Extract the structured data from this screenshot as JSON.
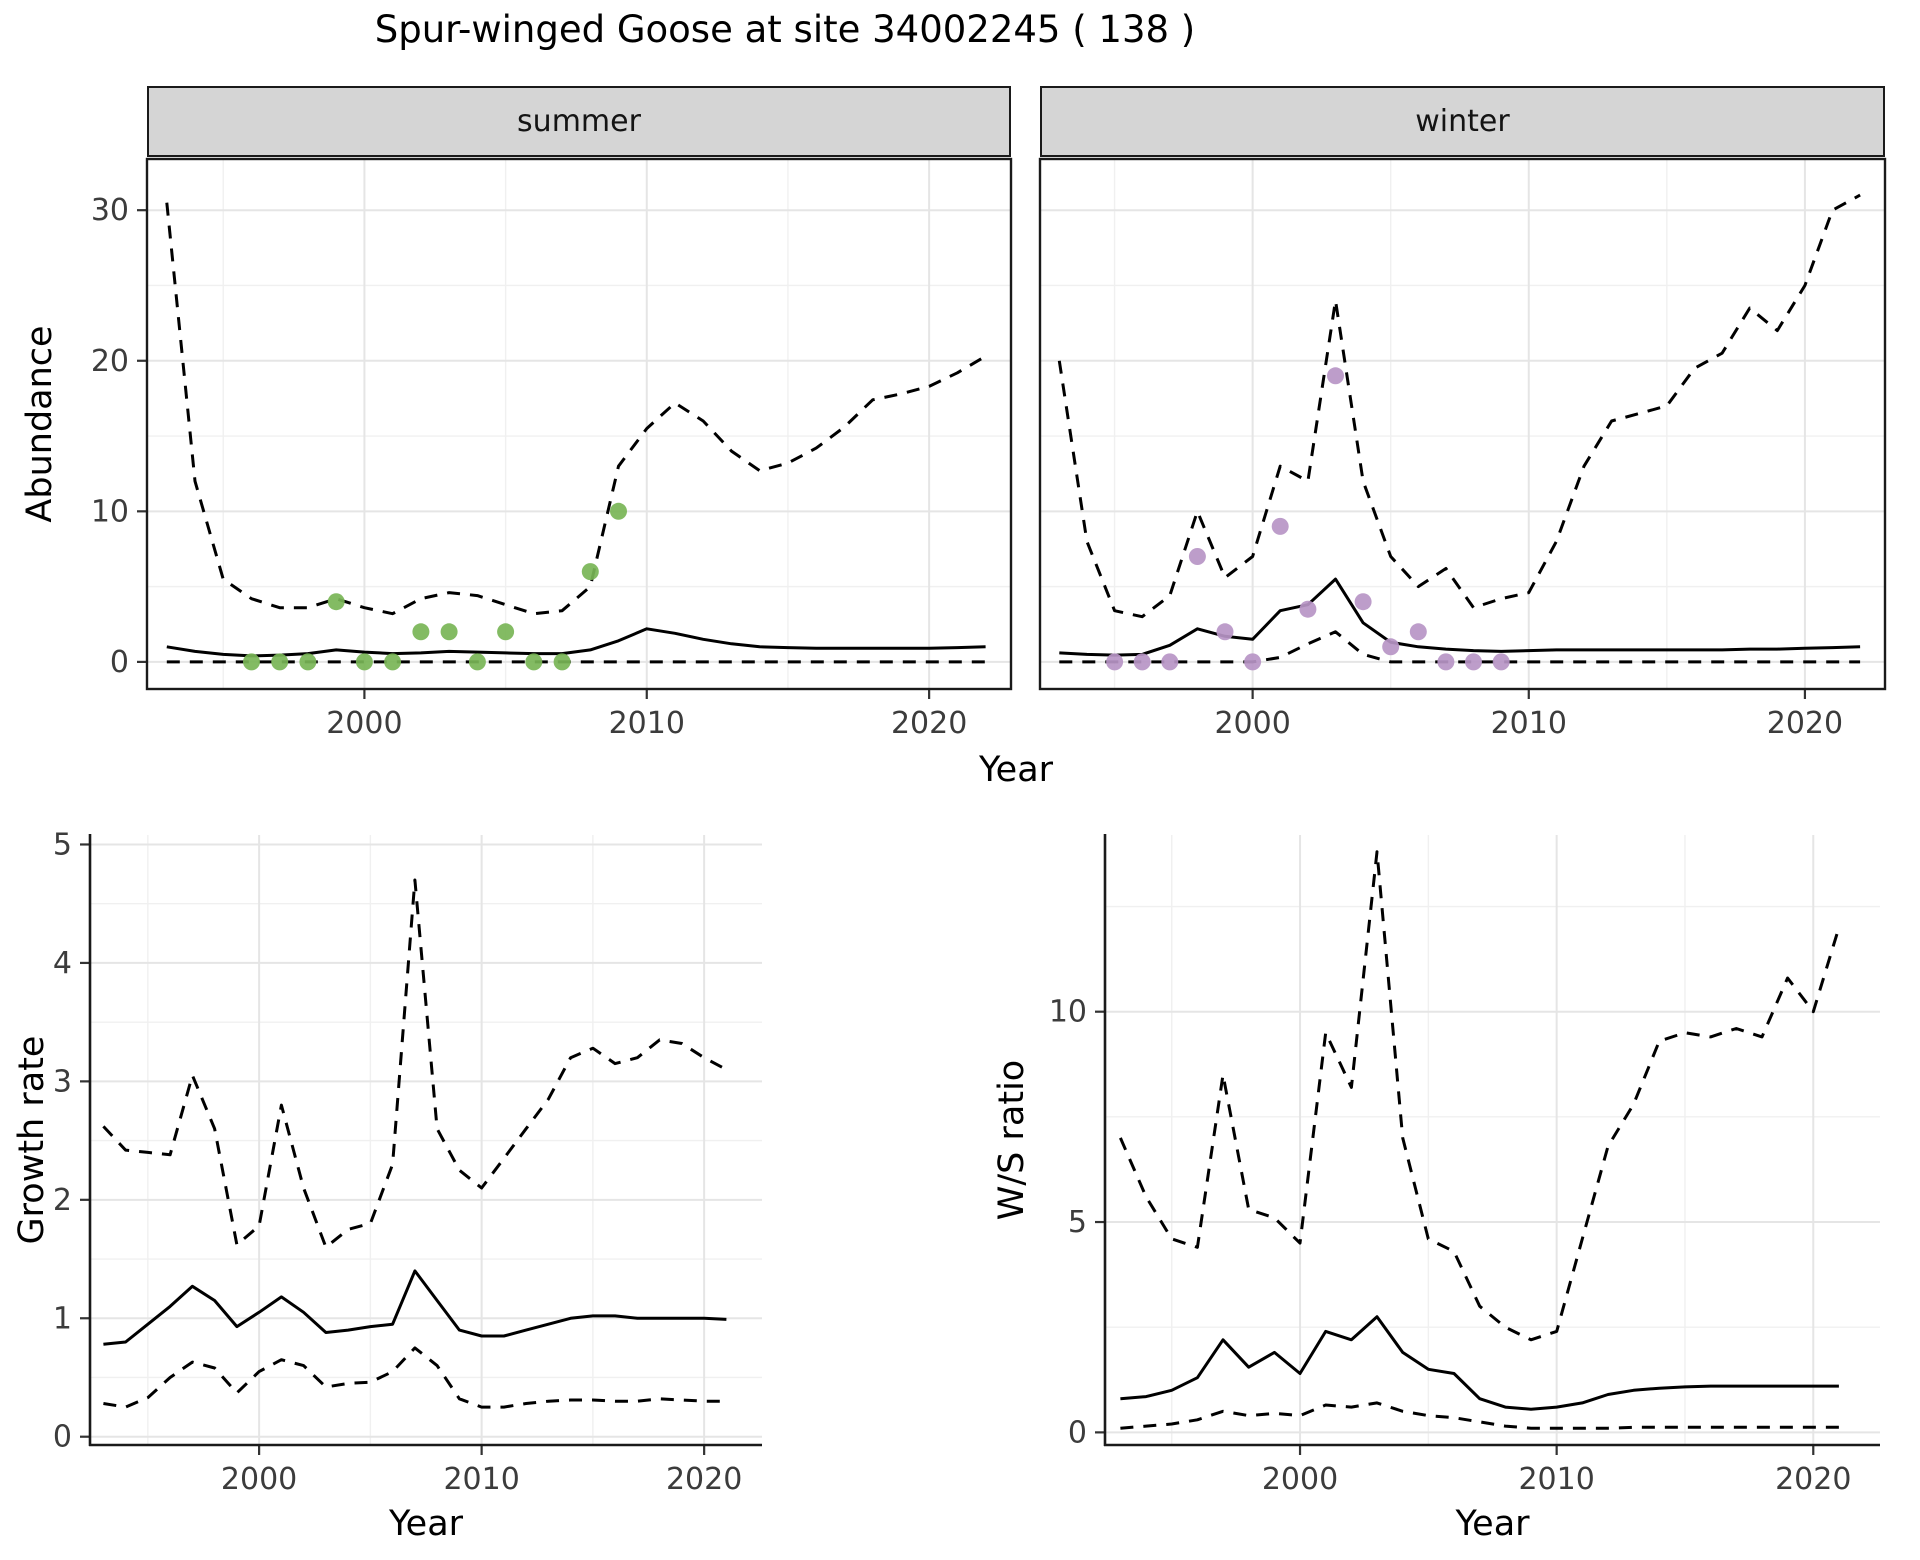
{
  "title": "Spur-winged Goose at site 34002245 ( 138 )",
  "facets": [
    {
      "label": "summer"
    },
    {
      "label": "winter"
    }
  ],
  "labels": {
    "abundance_y": "Abundance",
    "abundance_x": "Year",
    "growth_y": "Growth rate",
    "growth_x": "Year",
    "ws_y": "W/S ratio",
    "ws_x": "Year"
  },
  "colors": {
    "line": "#000000",
    "grid_major": "#e5e5e5",
    "grid_minor": "#f0f0f0",
    "strip_bg": "#d5d5d5",
    "summer_points": "#78b556",
    "winter_points": "#b795c6"
  },
  "chart_data": [
    {
      "id": "abundance-summer",
      "type": "line",
      "facet": "summer",
      "title": "Spur-winged Goose at site 34002245 ( 138 )",
      "xlabel": "Year",
      "ylabel": "Abundance",
      "x": [
        1993,
        1994,
        1995,
        1996,
        1997,
        1998,
        1999,
        2000,
        2001,
        2002,
        2003,
        2004,
        2005,
        2006,
        2007,
        2008,
        2009,
        2010,
        2011,
        2012,
        2013,
        2014,
        2015,
        2016,
        2017,
        2018,
        2019,
        2020,
        2021,
        2022
      ],
      "series": [
        {
          "name": "upper_95ci",
          "style": "dashed",
          "values": [
            30.5,
            12.0,
            5.5,
            4.2,
            3.6,
            3.6,
            4.2,
            3.6,
            3.2,
            4.2,
            4.6,
            4.4,
            3.8,
            3.2,
            3.4,
            5.0,
            13.0,
            15.5,
            17.2,
            16.0,
            14.0,
            12.7,
            13.2,
            14.2,
            15.6,
            17.4,
            17.8,
            18.3,
            19.2,
            20.3
          ]
        },
        {
          "name": "median",
          "style": "solid",
          "values": [
            1.0,
            0.7,
            0.5,
            0.4,
            0.45,
            0.55,
            0.8,
            0.65,
            0.55,
            0.6,
            0.7,
            0.65,
            0.6,
            0.55,
            0.55,
            0.8,
            1.4,
            2.2,
            1.9,
            1.5,
            1.2,
            1.0,
            0.95,
            0.9,
            0.9,
            0.9,
            0.9,
            0.9,
            0.95,
            1.0
          ]
        },
        {
          "name": "lower_95ci",
          "style": "dashed",
          "values": [
            0,
            0,
            0,
            0,
            0,
            0,
            0,
            0,
            0,
            0,
            0,
            0,
            0,
            0,
            0,
            0,
            0,
            0,
            0,
            0,
            0,
            0,
            0,
            0,
            0,
            0,
            0,
            0,
            0,
            0
          ]
        }
      ],
      "points": {
        "name": "observed counts (summer)",
        "color": "#78b556",
        "x": [
          1996,
          1997,
          1998,
          1999,
          2000,
          2001,
          2002,
          2003,
          2004,
          2005,
          2006,
          2007,
          2008,
          2009
        ],
        "y": [
          0,
          0,
          0,
          4,
          0,
          0,
          2,
          2,
          0,
          2,
          0,
          0,
          6,
          10
        ]
      },
      "xlim": [
        1992.3,
        2022.9
      ],
      "ylim": [
        -1.8,
        33.4
      ],
      "xticks": [
        2000,
        2010,
        2020
      ],
      "yticks": [
        0,
        10,
        20,
        30
      ],
      "xminor": [
        1995,
        2005,
        2015
      ],
      "yminor": [
        5,
        15,
        25
      ],
      "grid": true,
      "legend": "none"
    },
    {
      "id": "abundance-winter",
      "type": "line",
      "facet": "winter",
      "title": "Spur-winged Goose at site 34002245 ( 138 )",
      "xlabel": "Year",
      "ylabel": "Abundance",
      "x": [
        1993,
        1994,
        1995,
        1996,
        1997,
        1998,
        1999,
        2000,
        2001,
        2002,
        2003,
        2004,
        2005,
        2006,
        2007,
        2008,
        2009,
        2010,
        2011,
        2012,
        2013,
        2014,
        2015,
        2016,
        2017,
        2018,
        2019,
        2020,
        2021,
        2022
      ],
      "series": [
        {
          "name": "upper_95ci",
          "style": "dashed",
          "values": [
            20.0,
            8.0,
            3.4,
            3.0,
            4.4,
            10.0,
            5.6,
            7.0,
            13.0,
            12.0,
            24.0,
            12.0,
            7.0,
            5.0,
            6.2,
            3.6,
            4.2,
            4.6,
            8.0,
            13.0,
            16.0,
            16.5,
            17.0,
            19.5,
            20.5,
            23.5,
            22.0,
            25.0,
            30.0,
            31.0
          ]
        },
        {
          "name": "median",
          "style": "solid",
          "values": [
            0.6,
            0.5,
            0.45,
            0.5,
            1.1,
            2.2,
            1.7,
            1.5,
            3.4,
            3.8,
            5.5,
            2.6,
            1.3,
            1.0,
            0.85,
            0.75,
            0.7,
            0.75,
            0.8,
            0.8,
            0.8,
            0.8,
            0.8,
            0.8,
            0.8,
            0.85,
            0.85,
            0.9,
            0.95,
            1.0
          ]
        },
        {
          "name": "lower_95ci",
          "style": "dashed",
          "values": [
            0,
            0,
            0,
            0,
            0,
            0,
            0,
            0,
            0.3,
            1.2,
            2.0,
            0.5,
            0,
            0,
            0,
            0,
            0,
            0,
            0,
            0,
            0,
            0,
            0,
            0,
            0,
            0,
            0,
            0,
            0,
            0
          ]
        }
      ],
      "points": {
        "name": "observed counts (winter)",
        "color": "#b795c6",
        "x": [
          1995,
          1996,
          1997,
          1998,
          1999,
          2000,
          2001,
          2002,
          2003,
          2004,
          2005,
          2006,
          2007,
          2008,
          2009
        ],
        "y": [
          0,
          0,
          0,
          7,
          2,
          0,
          9,
          3.5,
          19,
          4,
          1,
          2,
          0,
          0,
          0
        ]
      },
      "xlim": [
        1992.3,
        2022.9
      ],
      "ylim": [
        -1.8,
        33.4
      ],
      "xticks": [
        2000,
        2010,
        2020
      ],
      "yticks": [
        0,
        10,
        20,
        30
      ],
      "xminor": [
        1995,
        2005,
        2015
      ],
      "yminor": [
        5,
        15,
        25
      ],
      "grid": true,
      "legend": "none"
    },
    {
      "id": "growth-rate",
      "type": "line",
      "title": "",
      "xlabel": "Year",
      "ylabel": "Growth rate",
      "x": [
        1993,
        1994,
        1995,
        1996,
        1997,
        1998,
        1999,
        2000,
        2001,
        2002,
        2003,
        2004,
        2005,
        2006,
        2007,
        2008,
        2009,
        2010,
        2011,
        2012,
        2013,
        2014,
        2015,
        2016,
        2017,
        2018,
        2019,
        2020,
        2021
      ],
      "series": [
        {
          "name": "upper_95ci",
          "style": "dashed",
          "values": [
            2.62,
            2.42,
            2.4,
            2.38,
            3.05,
            2.6,
            1.62,
            1.78,
            2.8,
            2.1,
            1.6,
            1.75,
            1.8,
            2.3,
            4.7,
            2.6,
            2.25,
            2.1,
            2.35,
            2.6,
            2.85,
            3.2,
            3.28,
            3.15,
            3.2,
            3.35,
            3.32,
            3.2,
            3.1
          ]
        },
        {
          "name": "median",
          "style": "solid",
          "values": [
            0.78,
            0.8,
            0.95,
            1.1,
            1.27,
            1.15,
            0.93,
            1.05,
            1.18,
            1.05,
            0.88,
            0.9,
            0.93,
            0.95,
            1.4,
            1.15,
            0.9,
            0.85,
            0.85,
            0.9,
            0.95,
            1.0,
            1.02,
            1.02,
            1.0,
            1.0,
            1.0,
            1.0,
            0.99
          ]
        },
        {
          "name": "lower_95ci",
          "style": "dashed",
          "values": [
            0.28,
            0.25,
            0.33,
            0.5,
            0.63,
            0.58,
            0.37,
            0.55,
            0.65,
            0.6,
            0.42,
            0.45,
            0.46,
            0.55,
            0.75,
            0.6,
            0.32,
            0.25,
            0.25,
            0.28,
            0.3,
            0.31,
            0.31,
            0.3,
            0.3,
            0.32,
            0.31,
            0.3,
            0.3
          ]
        }
      ],
      "xlim": [
        1992.4,
        2022.6
      ],
      "ylim": [
        -0.07,
        5.08
      ],
      "xticks": [
        2000,
        2010,
        2020
      ],
      "yticks": [
        0,
        1,
        2,
        3,
        4,
        5
      ],
      "xminor": [
        1995,
        2005,
        2015
      ],
      "yminor": [
        0.5,
        1.5,
        2.5,
        3.5,
        4.5
      ],
      "grid": true,
      "legend": "none"
    },
    {
      "id": "ws-ratio",
      "type": "line",
      "title": "",
      "xlabel": "Year",
      "ylabel": "W/S ratio",
      "x": [
        1993,
        1994,
        1995,
        1996,
        1997,
        1998,
        1999,
        2000,
        2001,
        2002,
        2003,
        2004,
        2005,
        2006,
        2007,
        2008,
        2009,
        2010,
        2011,
        2012,
        2013,
        2014,
        2015,
        2016,
        2017,
        2018,
        2019,
        2020,
        2021
      ],
      "series": [
        {
          "name": "upper_95ci",
          "style": "dashed",
          "values": [
            7.0,
            5.6,
            4.6,
            4.4,
            8.5,
            5.3,
            5.1,
            4.5,
            9.5,
            8.2,
            13.8,
            7.0,
            4.6,
            4.3,
            3.0,
            2.5,
            2.2,
            2.4,
            4.6,
            6.8,
            7.8,
            9.3,
            9.5,
            9.4,
            9.6,
            9.4,
            10.8,
            10.0,
            12.0
          ]
        },
        {
          "name": "median",
          "style": "solid",
          "values": [
            0.8,
            0.85,
            1.0,
            1.3,
            2.2,
            1.55,
            1.9,
            1.4,
            2.4,
            2.2,
            2.75,
            1.9,
            1.5,
            1.4,
            0.8,
            0.6,
            0.55,
            0.6,
            0.7,
            0.9,
            1.0,
            1.05,
            1.08,
            1.1,
            1.1,
            1.1,
            1.1,
            1.1,
            1.1
          ]
        },
        {
          "name": "lower_95ci",
          "style": "dashed",
          "values": [
            0.1,
            0.15,
            0.2,
            0.3,
            0.5,
            0.4,
            0.45,
            0.4,
            0.65,
            0.6,
            0.7,
            0.5,
            0.4,
            0.35,
            0.25,
            0.15,
            0.1,
            0.1,
            0.1,
            0.1,
            0.12,
            0.12,
            0.12,
            0.12,
            0.12,
            0.12,
            0.12,
            0.12,
            0.12
          ]
        }
      ],
      "xlim": [
        1992.4,
        2022.6
      ],
      "ylim": [
        -0.3,
        14.2
      ],
      "xticks": [
        2000,
        2010,
        2020
      ],
      "yticks": [
        0,
        5,
        10
      ],
      "xminor": [
        1995,
        2005,
        2015
      ],
      "yminor": [
        2.5,
        7.5,
        12.5
      ],
      "grid": true,
      "legend": "none"
    }
  ]
}
